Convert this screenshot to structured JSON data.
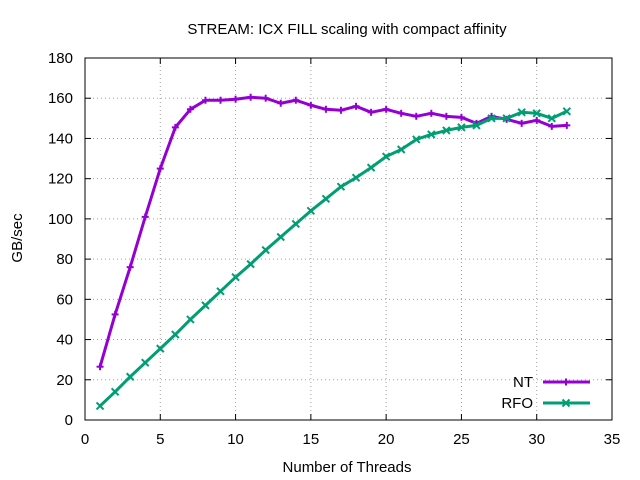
{
  "chart_data": {
    "type": "line",
    "title": "STREAM: ICX FILL scaling with compact affinity",
    "xlabel": "Number of Threads",
    "ylabel": "GB/sec",
    "xlim": [
      0,
      35
    ],
    "ylim": [
      0,
      180
    ],
    "xticks": [
      "0",
      "5",
      "10",
      "15",
      "20",
      "25",
      "30",
      "35"
    ],
    "yticks": [
      "0",
      "20",
      "40",
      "60",
      "80",
      "100",
      "120",
      "140",
      "160",
      "180"
    ],
    "grid": true,
    "legend_position": "bottom-right",
    "x": [
      1,
      2,
      3,
      4,
      5,
      6,
      7,
      8,
      9,
      10,
      11,
      12,
      13,
      14,
      15,
      16,
      17,
      18,
      19,
      20,
      21,
      22,
      23,
      24,
      25,
      26,
      27,
      28,
      29,
      30,
      31,
      32
    ],
    "series": [
      {
        "name": "NT",
        "color": "#9400d3",
        "marker": "plus",
        "values": [
          26.5,
          52.5,
          76,
          101,
          125,
          145.5,
          154.5,
          159,
          159,
          159.5,
          160.5,
          160,
          157.5,
          159,
          156.5,
          154.5,
          154,
          156,
          153,
          154.5,
          152.5,
          151,
          152.5,
          151,
          150.5,
          147.5,
          151,
          149.5,
          147.5,
          149,
          146,
          146.5
        ]
      },
      {
        "name": "RFO",
        "color": "#009e73",
        "marker": "cross",
        "values": [
          7,
          14,
          21.5,
          28.5,
          35.5,
          42.5,
          50,
          57,
          64,
          71,
          77.5,
          84.5,
          91,
          97.5,
          104,
          110,
          116,
          120.5,
          125.5,
          131,
          134.5,
          139.5,
          142,
          144,
          145.5,
          146.5,
          150,
          150,
          153,
          152.5,
          150,
          153.5
        ]
      }
    ]
  }
}
